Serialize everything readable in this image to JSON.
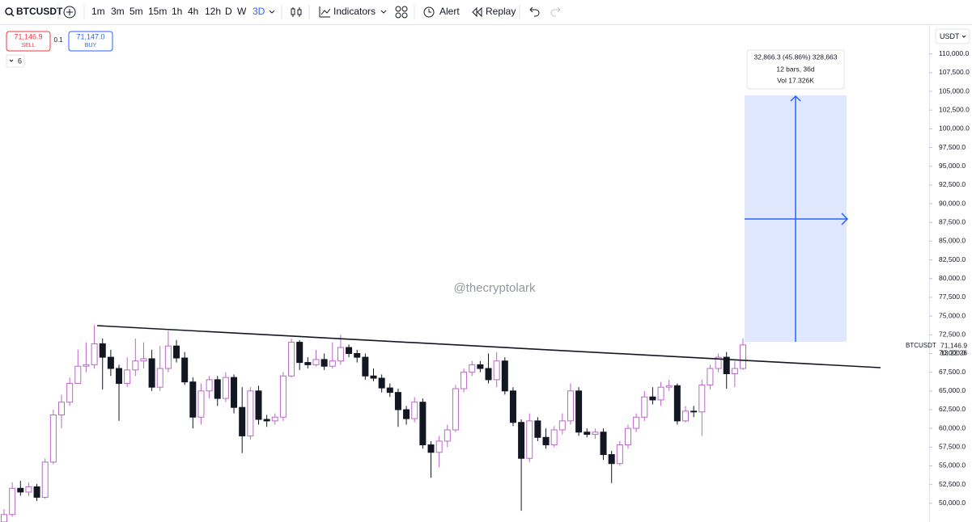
{
  "toolbar": {
    "symbol": "BTCUSDT",
    "intervals": [
      "1m",
      "3m",
      "5m",
      "15m",
      "1h",
      "4h",
      "12h",
      "D",
      "W",
      "3D"
    ],
    "indicators": "Indicators",
    "alert": "Alert",
    "replay": "Replay"
  },
  "trade": {
    "sell_price": "71,146.9",
    "sell": "SELL",
    "qty": "0.1",
    "buy_price": "71,147.0",
    "buy": "BUY",
    "count": "6"
  },
  "currency": "USDT",
  "measure": {
    "line1": "32,866.3 (45.86%) 328,663",
    "line2": "12 bars, 36d",
    "line3": "Vol 17.326K"
  },
  "watermark": "@thecryptolark",
  "price_label": {
    "symbol": "BTCUSDT",
    "price": "71,146.9",
    "countdown": "13:22:26"
  },
  "chart_data": {
    "type": "candlestick",
    "up_color": "#ba68c8",
    "down_color": "#131722",
    "open": [
      47500,
      48500,
      52000,
      51500,
      52200,
      50800,
      55500,
      61800,
      63500,
      66000,
      68300,
      68500,
      71300,
      69500,
      68000,
      66000,
      67800,
      69000,
      69300,
      65500,
      68000,
      71000,
      69400,
      66200,
      61500,
      65000,
      66500,
      64000,
      66800,
      62800,
      59000,
      65000,
      61200,
      61000,
      61500,
      67000,
      71500,
      68800,
      68500,
      69200,
      68300,
      69000,
      70800,
      70000,
      69500,
      67000,
      66700,
      65400,
      64800,
      62500,
      61300,
      63500,
      57800,
      56800,
      58300,
      59800,
      65300,
      67500,
      68500,
      68000,
      66500,
      69000,
      65000,
      60800,
      56000,
      61000,
      58800,
      57800,
      59800,
      61000,
      65000,
      59500,
      59200,
      59500,
      56500,
      55300,
      57800,
      60000,
      61500,
      64200,
      63800,
      65500,
      65700,
      61000,
      62300,
      62200,
      65800,
      68000,
      69500,
      67300,
      68000
    ],
    "high": [
      49200,
      52800,
      53000,
      52800,
      52600,
      56000,
      62500,
      64500,
      66800,
      70500,
      71500,
      73800,
      72000,
      70500,
      68500,
      69500,
      72000,
      71500,
      70500,
      71000,
      73000,
      71800,
      70200,
      66800,
      66000,
      67000,
      67000,
      67500,
      67200,
      65500,
      65500,
      65700,
      61800,
      62000,
      67500,
      72000,
      71800,
      69500,
      70500,
      70000,
      71500,
      72500,
      71200,
      70500,
      70000,
      68000,
      67200,
      66000,
      65300,
      63000,
      64200,
      64000,
      58300,
      59000,
      60500,
      65800,
      68000,
      69000,
      69000,
      70000,
      70200,
      69500,
      65500,
      61200,
      62000,
      61500,
      60000,
      60300,
      62000,
      66000,
      65500,
      60000,
      60000,
      60000,
      57000,
      58300,
      60500,
      62000,
      65000,
      65500,
      66200,
      66500,
      66000,
      63000,
      63000,
      66500,
      68500,
      70000,
      70200,
      69000,
      72000
    ],
    "low": [
      47000,
      48200,
      51000,
      51000,
      50300,
      50600,
      55200,
      60000,
      63000,
      66000,
      67500,
      68000,
      65200,
      67000,
      61000,
      65500,
      67000,
      68000,
      65000,
      65000,
      67500,
      68800,
      65800,
      60000,
      60500,
      64000,
      63000,
      63500,
      62000,
      56700,
      58500,
      60500,
      60200,
      60500,
      61000,
      66800,
      67800,
      68000,
      68300,
      67800,
      68000,
      68500,
      69500,
      68800,
      66500,
      66300,
      64800,
      64200,
      60200,
      60500,
      60800,
      57300,
      53400,
      54800,
      57500,
      59500,
      64800,
      67000,
      67500,
      66000,
      65500,
      64500,
      60300,
      49000,
      55500,
      58300,
      57300,
      57500,
      59200,
      60500,
      59000,
      58800,
      58600,
      55800,
      52700,
      55000,
      57300,
      59500,
      61000,
      63200,
      63000,
      65000,
      60500,
      60800,
      61500,
      59000,
      65200,
      67500,
      65300,
      65500,
      67800
    ],
    "close": [
      48500,
      52000,
      51500,
      52200,
      50800,
      55500,
      61800,
      63500,
      66000,
      68300,
      68500,
      71300,
      69500,
      68000,
      66000,
      67800,
      69000,
      69300,
      65500,
      68000,
      71000,
      69400,
      66200,
      61500,
      65000,
      66500,
      64000,
      66800,
      62800,
      59000,
      65000,
      61200,
      61000,
      61500,
      67000,
      71500,
      68800,
      68500,
      69200,
      68300,
      69000,
      70800,
      70000,
      69500,
      67000,
      66700,
      65400,
      64800,
      62500,
      61300,
      63500,
      57800,
      56800,
      58300,
      59800,
      65300,
      67500,
      68500,
      68000,
      66500,
      69000,
      65000,
      60800,
      56000,
      61000,
      58800,
      57800,
      59800,
      61000,
      65000,
      59500,
      59200,
      59500,
      56500,
      55300,
      57800,
      60000,
      61500,
      64200,
      63800,
      65500,
      65700,
      61000,
      62300,
      62200,
      65800,
      68000,
      69500,
      67300,
      68000,
      71147
    ],
    "ylim": [
      47500,
      113100
    ],
    "yticks": [
      {
        "value": 110000,
        "label": "110,000.0"
      },
      {
        "value": 107500,
        "label": "107,500.0"
      },
      {
        "value": 105000,
        "label": "105,000.0"
      },
      {
        "value": 102500,
        "label": "102,500.0"
      },
      {
        "value": 100000,
        "label": "100,000.0"
      },
      {
        "value": 97500,
        "label": "97,500.0"
      },
      {
        "value": 95000,
        "label": "95,000.0"
      },
      {
        "value": 92500,
        "label": "92,500.0"
      },
      {
        "value": 90000,
        "label": "90,000.0"
      },
      {
        "value": 87500,
        "label": "87,500.0"
      },
      {
        "value": 85000,
        "label": "85,000.0"
      },
      {
        "value": 82500,
        "label": "82,500.0"
      },
      {
        "value": 80000,
        "label": "80,000.0"
      },
      {
        "value": 77500,
        "label": "77,500.0"
      },
      {
        "value": 75000,
        "label": "75,000.0"
      },
      {
        "value": 72500,
        "label": "72,500.0"
      },
      {
        "value": 70000,
        "label": "70,000.0"
      },
      {
        "value": 67500,
        "label": "67,500.0"
      },
      {
        "value": 65000,
        "label": "65,000.0"
      },
      {
        "value": 62500,
        "label": "62,500.0"
      },
      {
        "value": 60000,
        "label": "60,000.0"
      },
      {
        "value": 57500,
        "label": "57,500.0"
      },
      {
        "value": 55000,
        "label": "55,000.0"
      },
      {
        "value": 52500,
        "label": "52,500.0"
      },
      {
        "value": 50000,
        "label": "50,000.0"
      }
    ]
  }
}
